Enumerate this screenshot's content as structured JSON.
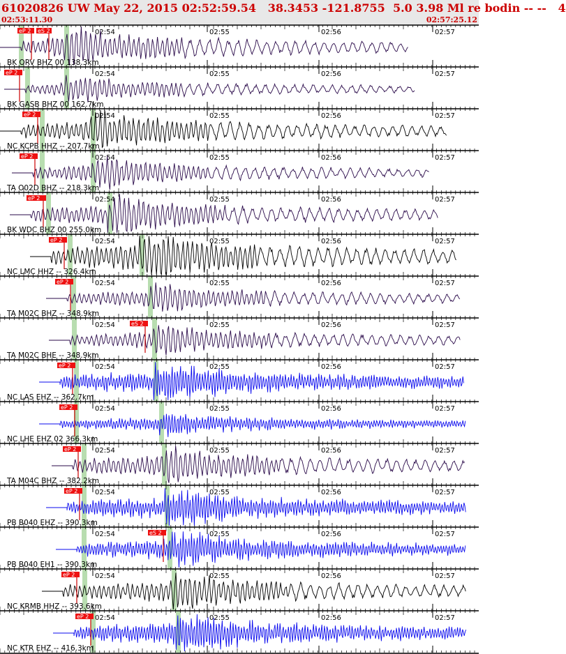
{
  "header": {
    "title": "61020826 UW May 22, 2015 02:52:59.54   38.3453 -121.8755  5.0 3.98 Ml re bodin -- --   4",
    "start_time": "02:53:11.30",
    "end_time": "02:57:25.12"
  },
  "time_ticks": [
    "02:54",
    "02:55",
    "02:56",
    "02:57"
  ],
  "colors": {
    "accent": "#cc0000",
    "pick_box": "#ee1111",
    "pick_line": "#cc0000",
    "phase_band": "#b8ddb0",
    "trace_broadband": "#2a0a4a",
    "trace_short_period": "#000000",
    "trace_strong_motion": "#0a0aee"
  },
  "traces": [
    {
      "label": "BK ORV BHZ 00 138.3km",
      "color": "#2a0a4a",
      "picks": [
        "eP 2",
        "eS 2"
      ]
    },
    {
      "label": "BK GASB BHZ 00 162.7km",
      "color": "#2a0a4a",
      "picks": [
        "eP 2"
      ]
    },
    {
      "label": "NC KCPB HHZ -- 207.7km",
      "color": "#000000",
      "picks": [
        "eP 2"
      ]
    },
    {
      "label": "TA O02D BHZ -- 218.3km",
      "color": "#2a0a4a",
      "picks": [
        "eP 2"
      ]
    },
    {
      "label": "BK WDC BHZ 00 255.0km",
      "color": "#2a0a4a",
      "picks": [
        "eP 2"
      ]
    },
    {
      "label": "NC LMC HHZ -- 326.4km",
      "color": "#000000",
      "picks": [
        "eP 2"
      ]
    },
    {
      "label": "TA M02C BHZ -- 348.9km",
      "color": "#2a0a4a",
      "picks": [
        "eP 2"
      ]
    },
    {
      "label": "TA M02C BHE -- 348.9km",
      "color": "#2a0a4a",
      "picks": [
        "eS 2"
      ]
    },
    {
      "label": "NC LAS EHZ -- 362.7km",
      "color": "#0a0aee",
      "picks": [
        "eP 2"
      ]
    },
    {
      "label": "NC LHE EHZ 02 366.3km",
      "color": "#0a0aee",
      "picks": [
        "eP 2"
      ]
    },
    {
      "label": "TA M04C BHZ -- 382.2km",
      "color": "#2a0a4a",
      "picks": [
        "eP 2"
      ]
    },
    {
      "label": "PB B040 EHZ -- 390.3km",
      "color": "#0a0aee",
      "picks": [
        "eP 2"
      ]
    },
    {
      "label": "PB B040 EH1 -- 390.3km",
      "color": "#0a0aee",
      "picks": [
        "eS 2"
      ]
    },
    {
      "label": "NC KRMB HHZ -- 393.6km",
      "color": "#000000",
      "picks": [
        "eP 2"
      ]
    },
    {
      "label": "NC KTR EHZ -- 416.3km",
      "color": "#0a0aee",
      "picks": [
        "eP 2"
      ]
    }
  ]
}
